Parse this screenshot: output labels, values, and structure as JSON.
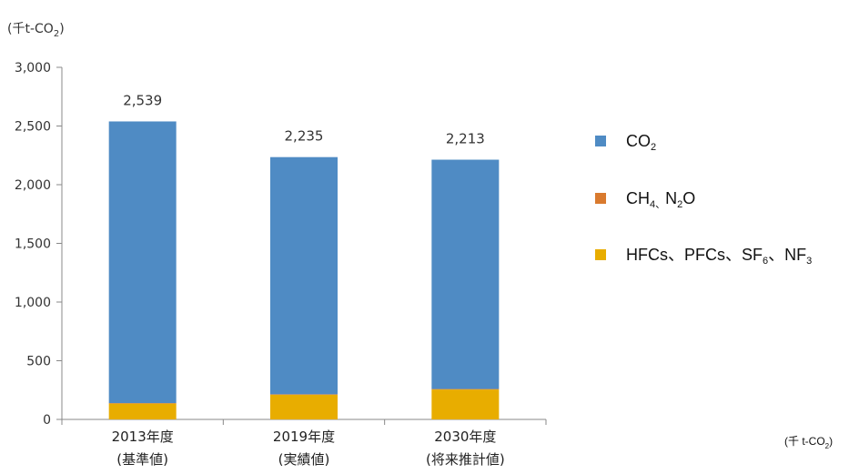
{
  "chart_data": {
    "type": "bar",
    "stacked": true,
    "y_unit_label": {
      "prefix": "(千t-CO",
      "sub": "2",
      "suffix": ")"
    },
    "ylim": [
      0,
      3000
    ],
    "yticks": [
      0,
      500,
      1000,
      1500,
      2000,
      2500,
      3000
    ],
    "ytick_labels": [
      "0",
      "500",
      "1,000",
      "1,500",
      "2,000",
      "2,500",
      "3,000"
    ],
    "categories": [
      {
        "line1": "2013年度",
        "line2": "(基準値)"
      },
      {
        "line1": "2019年度",
        "line2": "(実績値)"
      },
      {
        "line1": "2030年度",
        "line2": "(将来推計値)"
      }
    ],
    "totals": [
      2539,
      2235,
      2213
    ],
    "total_labels": [
      "2,539",
      "2,235",
      "2,213"
    ],
    "series": [
      {
        "key": "hfcs",
        "color": "#e8ad00",
        "legend": {
          "parts": [
            {
              "t": "HFCs、PFCs、SF"
            },
            {
              "t": "6",
              "sub": true
            },
            {
              "t": "、NF"
            },
            {
              "t": "3",
              "sub": true
            }
          ]
        },
        "values": [
          135,
          210,
          255
        ]
      },
      {
        "key": "ch4n2o",
        "color": "#d97a2e",
        "legend": {
          "parts": [
            {
              "t": "CH"
            },
            {
              "t": "4",
              "sub": true
            },
            {
              "t": "、",
              "sub": true
            },
            {
              "t": "N"
            },
            {
              "t": "2",
              "sub": true
            },
            {
              "t": "O"
            }
          ]
        },
        "values": [
          4,
          4,
          4
        ]
      },
      {
        "key": "co2",
        "color": "#4f8bc4",
        "legend": {
          "parts": [
            {
              "t": "CO"
            },
            {
              "t": "2",
              "sub": true
            }
          ]
        },
        "values": [
          2400,
          2021,
          1954
        ]
      }
    ],
    "legend_order": [
      "co2",
      "ch4n2o",
      "hfcs"
    ],
    "legend_position": "right",
    "grid": false,
    "bottom_unit_note": {
      "prefix": "(千 t-CO",
      "sub": "2",
      "suffix": ")"
    }
  }
}
